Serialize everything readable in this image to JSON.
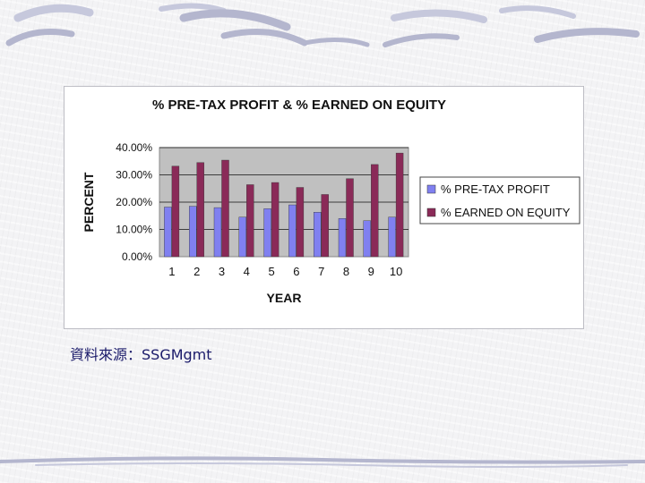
{
  "source_note": "資料來源：SSGMgmt",
  "chart_data": {
    "type": "bar",
    "title": "% PRE-TAX PROFIT & % EARNED ON EQUITY",
    "xlabel": "YEAR",
    "ylabel": "PERCENT",
    "categories": [
      "1",
      "2",
      "3",
      "4",
      "5",
      "6",
      "7",
      "8",
      "9",
      "10"
    ],
    "ylim": [
      0,
      40
    ],
    "yticks": [
      "0.00%",
      "10.00%",
      "20.00%",
      "30.00%",
      "40.00%"
    ],
    "ytick_values": [
      0,
      10,
      20,
      30,
      40
    ],
    "grid": true,
    "legend_position": "right",
    "series": [
      {
        "name": "% PRE-TAX PROFIT",
        "color": "#8080f0",
        "values": [
          18.2,
          18.5,
          18.0,
          14.5,
          17.6,
          19.0,
          16.3,
          14.0,
          13.2,
          14.5
        ]
      },
      {
        "name": "% EARNED ON EQUITY",
        "color": "#8a2a58",
        "values": [
          33.2,
          34.5,
          35.4,
          26.4,
          27.2,
          25.4,
          22.8,
          28.6,
          33.8,
          38.0
        ]
      }
    ],
    "plot_background": "#c0c0c0"
  }
}
